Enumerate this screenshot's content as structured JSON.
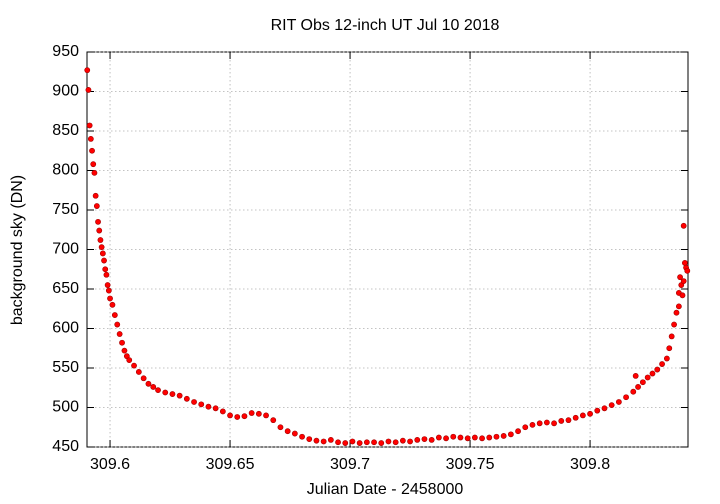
{
  "chart_data": {
    "type": "scatter",
    "title": "RIT Obs 12-inch UT Jul 10 2018",
    "x_label": "Julian Date - 2458000",
    "y_label": "background sky (DN)",
    "color": "#ff0000",
    "grid": true,
    "xlim": [
      309.5904,
      309.8408
    ],
    "ylim": [
      450,
      950
    ],
    "xticks": [
      309.6,
      309.65,
      309.7,
      309.75,
      309.8
    ],
    "yticks": [
      450,
      500,
      550,
      600,
      650,
      700,
      750,
      800,
      850,
      900,
      950
    ],
    "x": [
      309.5905,
      309.591,
      309.5915,
      309.592,
      309.5925,
      309.593,
      309.5935,
      309.594,
      309.5945,
      309.595,
      309.5955,
      309.596,
      309.5965,
      309.597,
      309.5975,
      309.598,
      309.5985,
      309.599,
      309.5995,
      309.6,
      309.601,
      309.602,
      309.603,
      309.604,
      309.605,
      309.606,
      309.607,
      309.608,
      309.61,
      309.612,
      309.614,
      309.616,
      309.618,
      309.62,
      309.623,
      309.626,
      309.629,
      309.632,
      309.635,
      309.638,
      309.641,
      309.644,
      309.647,
      309.65,
      309.653,
      309.656,
      309.659,
      309.662,
      309.665,
      309.668,
      309.671,
      309.674,
      309.677,
      309.68,
      309.683,
      309.686,
      309.689,
      309.692,
      309.695,
      309.698,
      309.701,
      309.704,
      309.707,
      309.71,
      309.713,
      309.716,
      309.719,
      309.722,
      309.725,
      309.728,
      309.731,
      309.734,
      309.737,
      309.74,
      309.743,
      309.746,
      309.749,
      309.752,
      309.755,
      309.758,
      309.761,
      309.764,
      309.767,
      309.77,
      309.773,
      309.776,
      309.779,
      309.782,
      309.785,
      309.788,
      309.791,
      309.794,
      309.797,
      309.8,
      309.803,
      309.806,
      309.809,
      309.812,
      309.815,
      309.818,
      309.82,
      309.822,
      309.824,
      309.826,
      309.828,
      309.83,
      309.832,
      309.833,
      309.834,
      309.835,
      309.836,
      309.837,
      309.8375,
      309.838,
      309.8385,
      309.839,
      309.8395,
      309.84,
      309.8405,
      309.839,
      309.837,
      309.819
    ],
    "y": [
      927,
      902,
      857,
      840,
      825,
      808,
      797,
      768,
      755,
      735,
      724,
      712,
      703,
      695,
      686,
      675,
      668,
      655,
      648,
      638,
      630,
      617,
      605,
      593,
      582,
      572,
      565,
      560,
      553,
      545,
      537,
      530,
      526,
      522,
      519,
      517,
      515,
      511,
      507,
      504,
      501,
      499,
      495,
      490,
      488,
      489,
      493,
      492,
      490,
      484,
      475,
      470,
      467,
      463,
      460,
      458,
      457,
      459,
      456,
      455,
      457,
      455,
      456,
      456,
      455,
      457,
      456,
      458,
      457,
      459,
      460,
      459,
      462,
      461,
      463,
      462,
      461,
      462,
      461,
      462,
      463,
      464,
      466,
      470,
      475,
      478,
      480,
      481,
      480,
      483,
      484,
      487,
      490,
      492,
      496,
      499,
      503,
      507,
      513,
      520,
      526,
      532,
      538,
      543,
      548,
      555,
      562,
      575,
      590,
      605,
      620,
      645,
      665,
      655,
      642,
      660,
      683,
      677,
      673,
      730,
      628,
      540
    ]
  }
}
